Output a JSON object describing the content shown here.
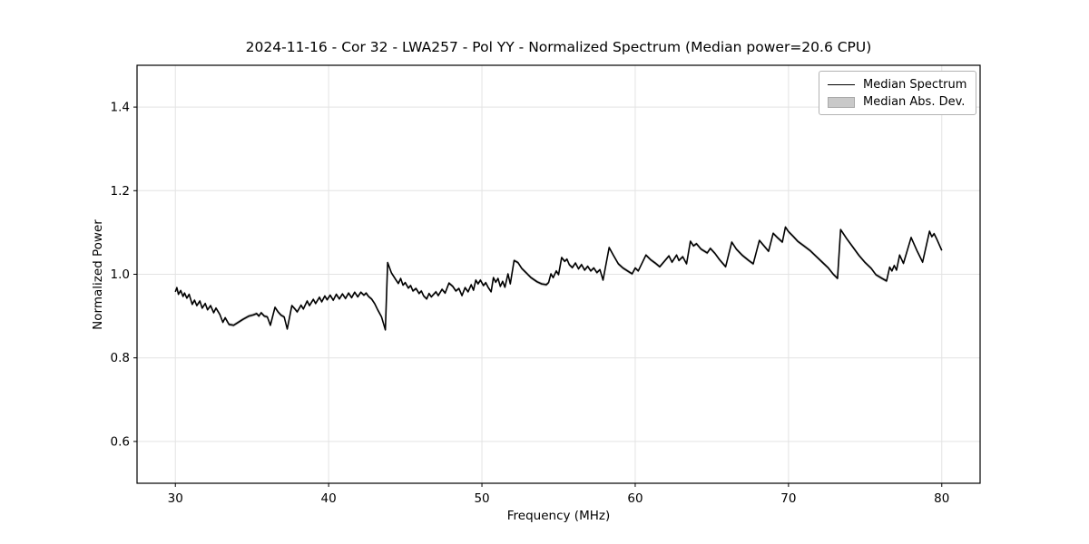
{
  "figure": {
    "title": "2024-11-16 - Cor 32 - LWA257 - Pol YY - Normalized Spectrum (Median power=20.6 CPU)"
  },
  "legend": {
    "entries": [
      {
        "label": "Median Spectrum",
        "type": "line",
        "color": "#000000"
      },
      {
        "label": "Median Abs. Dev.",
        "type": "patch",
        "color": "#c9c9c9",
        "edge_color": "#a9a9a9"
      }
    ]
  },
  "chart_data": {
    "type": "line",
    "title": "2024-11-16 - Cor 32 - LWA257 - Pol YY - Normalized Spectrum (Median power=20.6 CPU)",
    "xlabel": "Frequency (MHz)",
    "ylabel": "Normalized Power",
    "xlim": [
      27.5,
      82.5
    ],
    "ylim": [
      0.5,
      1.5
    ],
    "x_ticks": [
      30,
      40,
      50,
      60,
      70,
      80
    ],
    "y_ticks": [
      0.6,
      0.8,
      1.0,
      1.2,
      1.4
    ],
    "grid": true,
    "legend_position": "upper right",
    "colors": {
      "grid": "#e3e3e3",
      "spine": "#000000"
    },
    "series": [
      {
        "name": "Median Spectrum",
        "color": "#000000",
        "x": [
          30.0,
          30.1,
          30.2,
          30.35,
          30.5,
          30.6,
          30.75,
          30.9,
          31.1,
          31.25,
          31.4,
          31.6,
          31.75,
          31.95,
          32.1,
          32.3,
          32.5,
          32.65,
          32.9,
          33.1,
          33.25,
          33.5,
          33.8,
          34.1,
          34.4,
          34.8,
          35.1,
          35.3,
          35.45,
          35.6,
          35.8,
          36.0,
          36.2,
          36.5,
          36.7,
          36.9,
          37.1,
          37.3,
          37.6,
          37.8,
          37.95,
          38.2,
          38.35,
          38.6,
          38.75,
          39.0,
          39.15,
          39.4,
          39.55,
          39.75,
          39.9,
          40.1,
          40.3,
          40.5,
          40.7,
          40.9,
          41.1,
          41.3,
          41.5,
          41.7,
          41.9,
          42.1,
          42.3,
          42.45,
          42.6,
          42.8,
          43.0,
          43.2,
          43.45,
          43.7,
          43.85,
          44.1,
          44.4,
          44.55,
          44.7,
          44.85,
          45.0,
          45.2,
          45.35,
          45.5,
          45.7,
          45.9,
          46.05,
          46.2,
          46.4,
          46.55,
          46.7,
          47.0,
          47.15,
          47.4,
          47.6,
          47.85,
          48.1,
          48.3,
          48.5,
          48.7,
          48.9,
          49.1,
          49.3,
          49.45,
          49.6,
          49.75,
          49.9,
          50.1,
          50.25,
          50.4,
          50.6,
          50.75,
          50.9,
          51.05,
          51.2,
          51.35,
          51.5,
          51.7,
          51.85,
          52.1,
          52.35,
          52.6,
          52.9,
          53.2,
          53.6,
          53.9,
          54.2,
          54.35,
          54.5,
          54.65,
          54.85,
          55.0,
          55.2,
          55.4,
          55.55,
          55.7,
          55.9,
          56.1,
          56.3,
          56.5,
          56.7,
          56.9,
          57.1,
          57.3,
          57.5,
          57.7,
          57.9,
          58.3,
          58.6,
          58.9,
          59.2,
          59.5,
          59.8,
          60.0,
          60.2,
          60.7,
          61.0,
          61.3,
          61.6,
          61.9,
          62.2,
          62.4,
          62.7,
          62.85,
          63.1,
          63.35,
          63.6,
          63.8,
          64.0,
          64.3,
          64.7,
          64.9,
          65.2,
          65.5,
          65.9,
          66.3,
          66.6,
          67.0,
          67.4,
          67.7,
          68.1,
          68.4,
          68.7,
          69.0,
          69.3,
          69.6,
          69.8,
          70.0,
          70.3,
          70.6,
          71.0,
          71.4,
          71.8,
          72.2,
          72.6,
          72.9,
          73.2,
          73.4,
          73.8,
          74.2,
          74.6,
          75.0,
          75.4,
          75.7,
          76.1,
          76.4,
          76.6,
          76.75,
          76.9,
          77.05,
          77.25,
          77.5,
          78.0,
          78.4,
          78.75,
          79.2,
          79.35,
          79.5,
          79.65,
          80.0
        ],
        "y": [
          0.958,
          0.968,
          0.952,
          0.961,
          0.947,
          0.955,
          0.943,
          0.952,
          0.928,
          0.938,
          0.925,
          0.936,
          0.919,
          0.93,
          0.915,
          0.925,
          0.908,
          0.919,
          0.904,
          0.885,
          0.896,
          0.88,
          0.878,
          0.885,
          0.892,
          0.9,
          0.903,
          0.906,
          0.9,
          0.908,
          0.9,
          0.898,
          0.878,
          0.921,
          0.91,
          0.902,
          0.898,
          0.869,
          0.925,
          0.917,
          0.91,
          0.926,
          0.917,
          0.936,
          0.925,
          0.94,
          0.93,
          0.945,
          0.934,
          0.948,
          0.939,
          0.95,
          0.938,
          0.952,
          0.941,
          0.953,
          0.942,
          0.955,
          0.944,
          0.957,
          0.946,
          0.957,
          0.95,
          0.955,
          0.947,
          0.941,
          0.93,
          0.915,
          0.898,
          0.867,
          1.028,
          1.003,
          0.986,
          0.978,
          0.99,
          0.974,
          0.98,
          0.967,
          0.973,
          0.96,
          0.966,
          0.954,
          0.96,
          0.948,
          0.941,
          0.954,
          0.946,
          0.958,
          0.949,
          0.964,
          0.955,
          0.979,
          0.971,
          0.96,
          0.966,
          0.949,
          0.968,
          0.958,
          0.975,
          0.962,
          0.986,
          0.977,
          0.986,
          0.973,
          0.98,
          0.969,
          0.958,
          0.992,
          0.981,
          0.99,
          0.971,
          0.983,
          0.969,
          1.001,
          0.977,
          1.033,
          1.028,
          1.014,
          1.003,
          0.992,
          0.982,
          0.977,
          0.975,
          0.98,
          1.001,
          0.992,
          1.008,
          0.999,
          1.04,
          1.031,
          1.036,
          1.023,
          1.016,
          1.027,
          1.013,
          1.023,
          1.01,
          1.019,
          1.008,
          1.015,
          1.004,
          1.011,
          0.986,
          1.064,
          1.044,
          1.025,
          1.015,
          1.008,
          1.001,
          1.015,
          1.008,
          1.046,
          1.035,
          1.027,
          1.018,
          1.031,
          1.044,
          1.029,
          1.046,
          1.033,
          1.042,
          1.025,
          1.079,
          1.068,
          1.073,
          1.06,
          1.051,
          1.062,
          1.05,
          1.035,
          1.018,
          1.077,
          1.06,
          1.045,
          1.033,
          1.025,
          1.081,
          1.068,
          1.055,
          1.098,
          1.087,
          1.077,
          1.113,
          1.102,
          1.091,
          1.079,
          1.068,
          1.057,
          1.043,
          1.029,
          1.015,
          1.001,
          0.99,
          1.107,
          1.085,
          1.065,
          1.045,
          1.028,
          1.014,
          0.999,
          0.99,
          0.984,
          1.017,
          1.008,
          1.021,
          1.01,
          1.046,
          1.026,
          1.088,
          1.055,
          1.029,
          1.103,
          1.09,
          1.097,
          1.086,
          1.057
        ]
      },
      {
        "name": "Median Abs. Dev.",
        "color": "#c9c9c9",
        "band_halfwidth": 0.004
      }
    ]
  }
}
